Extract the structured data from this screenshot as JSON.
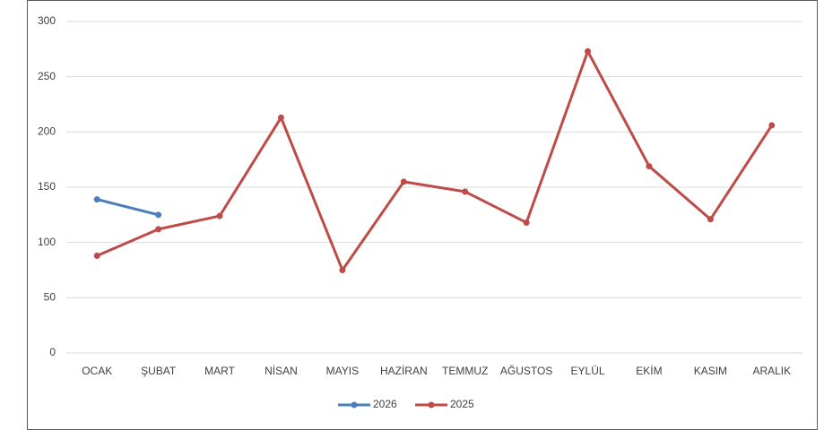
{
  "chart_data": {
    "type": "line",
    "categories": [
      "OCAK",
      "ŞUBAT",
      "MART",
      "NİSAN",
      "MAYIS",
      "HAZİRAN",
      "TEMMUZ",
      "AĞUSTOS",
      "EYLÜL",
      "EKİM",
      "KASIM",
      "ARALIK"
    ],
    "series": [
      {
        "name": "2026",
        "color": "#4a7ebb",
        "values": [
          139,
          125,
          null,
          null,
          null,
          null,
          null,
          null,
          null,
          null,
          null,
          null
        ]
      },
      {
        "name": "2025",
        "color": "#be4b48",
        "values": [
          88,
          112,
          124,
          213,
          75,
          155,
          146,
          118,
          273,
          169,
          121,
          206
        ]
      }
    ],
    "ylim": [
      0,
      300
    ],
    "yticks": [
      0,
      50,
      100,
      150,
      200,
      250,
      300
    ],
    "grid": true,
    "legend": "bottom"
  }
}
